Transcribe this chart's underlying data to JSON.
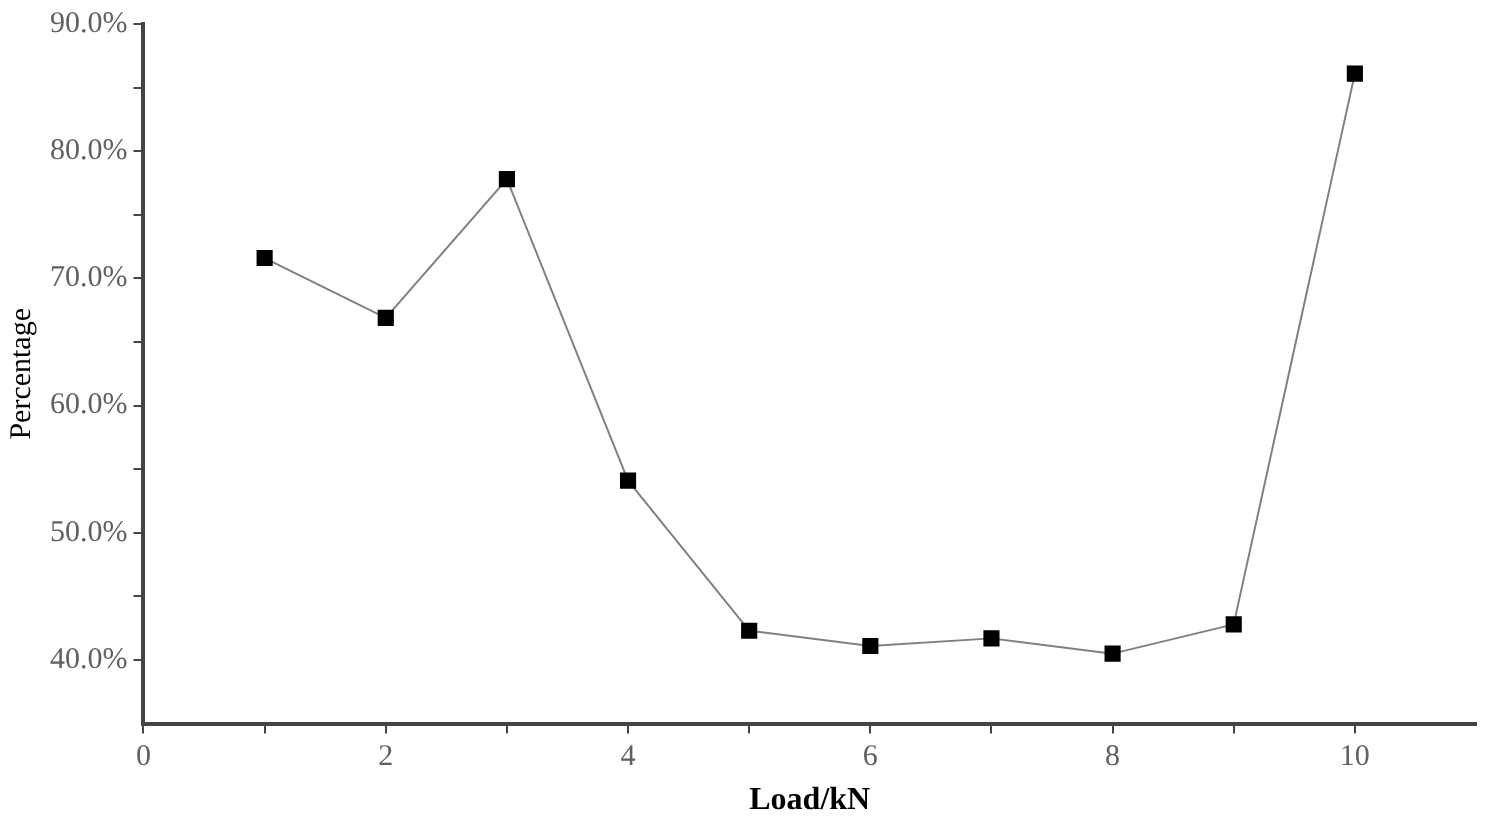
{
  "chart_data": {
    "type": "line",
    "xlabel": "Load/kN",
    "ylabel": "Percentage",
    "x": [
      1,
      2,
      3,
      4,
      5,
      6,
      7,
      8,
      9,
      10
    ],
    "series": [
      {
        "color": "#000000",
        "values": [
          71.6,
          66.9,
          77.8,
          54.1,
          42.3,
          41.1,
          41.7,
          40.5,
          42.8,
          86.1
        ]
      }
    ],
    "xlim": [
      0,
      11
    ],
    "xticks": [
      0,
      {
        "value": 1,
        "label": null
      },
      2,
      {
        "value": 3,
        "label": null
      },
      4,
      {
        "value": 5,
        "label": null
      },
      6,
      {
        "value": 7,
        "label": null
      },
      8,
      {
        "value": 9,
        "label": null
      },
      10
    ],
    "ylim": [
      35,
      90
    ],
    "yticks": [
      {
        "value": 40,
        "label": "40.0%"
      },
      {
        "value": 45,
        "label": null
      },
      {
        "value": 50,
        "label": "50.0%"
      },
      {
        "value": 55,
        "label": null
      },
      {
        "value": 60,
        "label": "60.0%"
      },
      {
        "value": 65,
        "label": null
      },
      {
        "value": 70,
        "label": "70.0%"
      },
      {
        "value": 75,
        "label": null
      },
      {
        "value": 80,
        "label": "80.0%"
      },
      {
        "value": 85,
        "label": null
      },
      {
        "value": 90,
        "label": "90.0%"
      }
    ],
    "grid": false,
    "legend": false,
    "marker": "square",
    "line_style": "solid"
  }
}
